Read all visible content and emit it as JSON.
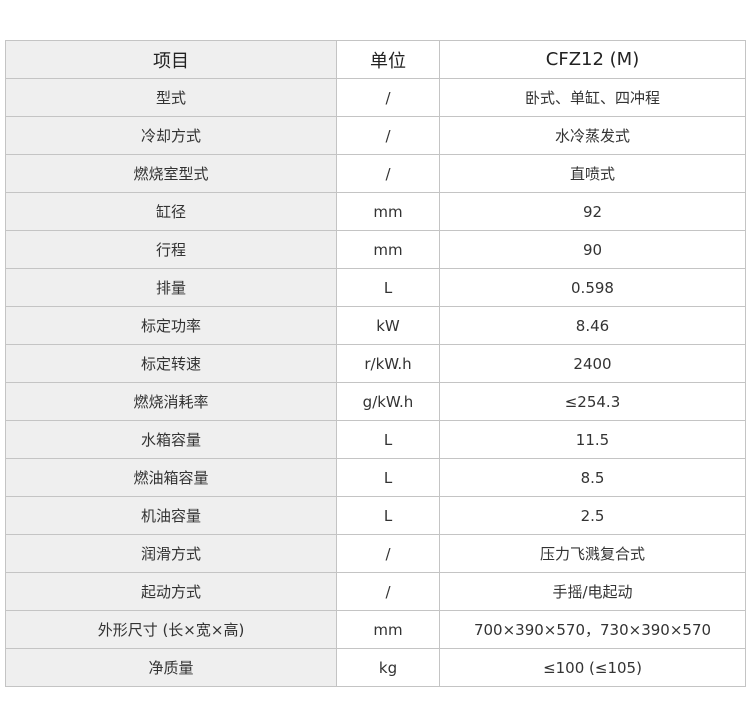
{
  "header": {
    "item": "项目",
    "unit": "单位",
    "model": "CFZ12 (M)"
  },
  "rows": [
    {
      "item": "型式",
      "unit": "/",
      "value": "卧式、单缸、四冲程"
    },
    {
      "item": "冷却方式",
      "unit": "/",
      "value": "水冷蒸发式"
    },
    {
      "item": "燃烧室型式",
      "unit": "/",
      "value": "直喷式"
    },
    {
      "item": "缸径",
      "unit": "mm",
      "value": "92"
    },
    {
      "item": "行程",
      "unit": "mm",
      "value": "90"
    },
    {
      "item": "排量",
      "unit": "L",
      "value": "0.598"
    },
    {
      "item": "标定功率",
      "unit": "kW",
      "value": "8.46"
    },
    {
      "item": "标定转速",
      "unit": "r/kW.h",
      "value": "2400"
    },
    {
      "item": "燃烧消耗率",
      "unit": "g/kW.h",
      "value": "≤254.3"
    },
    {
      "item": "水箱容量",
      "unit": "L",
      "value": "11.5"
    },
    {
      "item": "燃油箱容量",
      "unit": "L",
      "value": "8.5"
    },
    {
      "item": "机油容量",
      "unit": "L",
      "value": "2.5"
    },
    {
      "item": "润滑方式",
      "unit": "/",
      "value": "压力飞溅复合式"
    },
    {
      "item": "起动方式",
      "unit": "/",
      "value": "手摇/电起动"
    },
    {
      "item": "外形尺寸 (长×宽×高)",
      "unit": "mm",
      "value": "700×390×570，730×390×570"
    },
    {
      "item": "净质量",
      "unit": "kg",
      "value": "≤100 (≤105)"
    }
  ]
}
